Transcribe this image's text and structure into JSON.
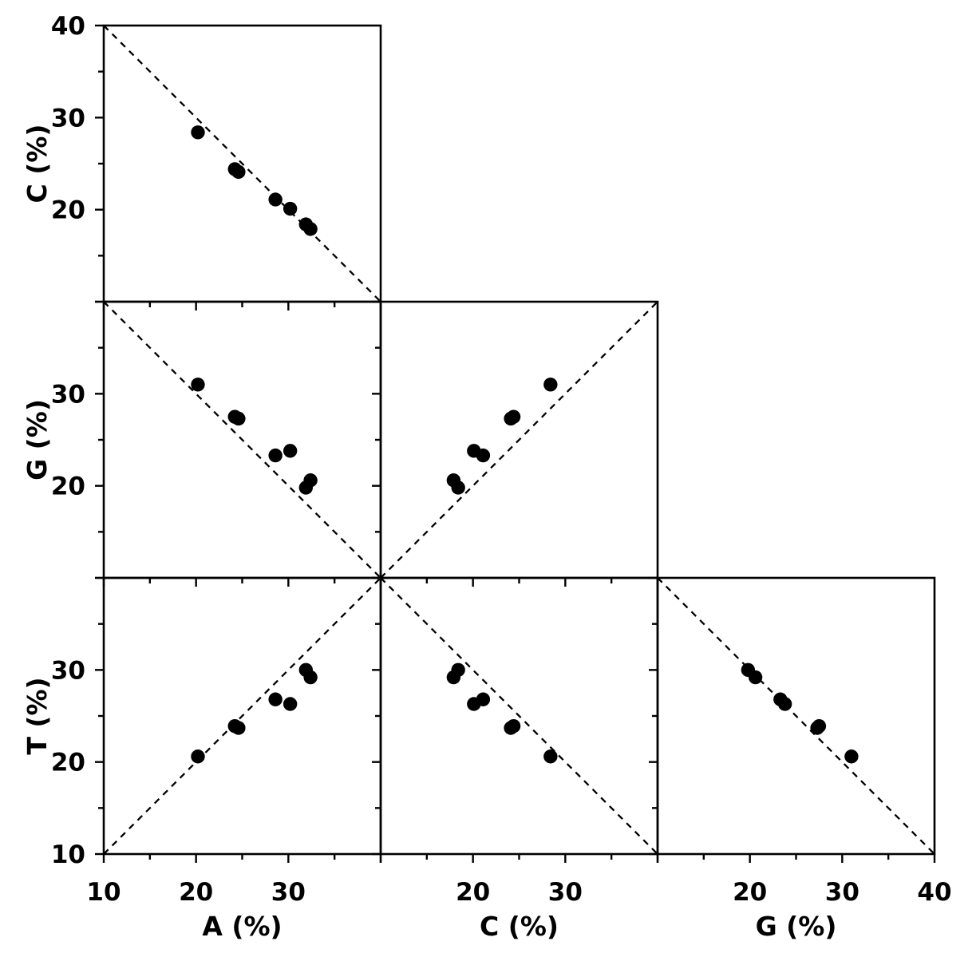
{
  "chart_data": {
    "type": "scatter",
    "subtype": "pairs-matrix-lower-triangle",
    "title": "",
    "variables": [
      "A",
      "C",
      "G",
      "T"
    ],
    "axis_range": [
      10,
      40
    ],
    "major_ticks": [
      10,
      20,
      30,
      40
    ],
    "minor_ticks": [
      15,
      25,
      35
    ],
    "grid": false,
    "legend": false,
    "colors": {
      "foreground": "#000000",
      "background": "#ffffff"
    },
    "marker": {
      "shape": "circle",
      "color": "#000000"
    },
    "reference_line_style": "dashed",
    "panels": [
      {
        "row": 0,
        "col": 0,
        "x_var": "A",
        "y_var": "C",
        "reference_line": "x+y=50"
      },
      {
        "row": 1,
        "col": 0,
        "x_var": "A",
        "y_var": "G",
        "reference_line": "x+y=50"
      },
      {
        "row": 1,
        "col": 1,
        "x_var": "C",
        "y_var": "G",
        "reference_line": "y=x"
      },
      {
        "row": 2,
        "col": 0,
        "x_var": "A",
        "y_var": "T",
        "reference_line": "y=x"
      },
      {
        "row": 2,
        "col": 1,
        "x_var": "C",
        "y_var": "T",
        "reference_line": "x+y=50"
      },
      {
        "row": 2,
        "col": 2,
        "x_var": "G",
        "y_var": "T",
        "reference_line": "x+y=50"
      }
    ],
    "x_axes": [
      {
        "col": 0,
        "title": "A (%)",
        "tick_labels": [
          10,
          20,
          30
        ]
      },
      {
        "col": 1,
        "title": "C (%)",
        "tick_labels": [
          20,
          30
        ]
      },
      {
        "col": 2,
        "title": "G (%)",
        "tick_labels": [
          20,
          30,
          40
        ]
      }
    ],
    "y_axes": [
      {
        "row": 0,
        "title": "C (%)",
        "tick_labels": [
          40,
          30,
          20
        ]
      },
      {
        "row": 1,
        "title": "G (%)",
        "tick_labels": [
          30,
          20
        ]
      },
      {
        "row": 2,
        "title": "T (%)",
        "tick_labels": [
          30,
          20,
          10
        ]
      }
    ],
    "observations": [
      {
        "A": 20.2,
        "C": 28.4,
        "G": 31.0,
        "T": 20.6
      },
      {
        "A": 24.2,
        "C": 24.4,
        "G": 27.5,
        "T": 23.9
      },
      {
        "A": 24.6,
        "C": 24.1,
        "G": 27.3,
        "T": 23.7
      },
      {
        "A": 28.6,
        "C": 21.1,
        "G": 23.3,
        "T": 26.8
      },
      {
        "A": 30.2,
        "C": 20.1,
        "G": 23.8,
        "T": 26.3
      },
      {
        "A": 31.9,
        "C": 18.4,
        "G": 19.8,
        "T": 30.0
      },
      {
        "A": 32.4,
        "C": 17.9,
        "G": 20.6,
        "T": 29.2
      }
    ]
  }
}
